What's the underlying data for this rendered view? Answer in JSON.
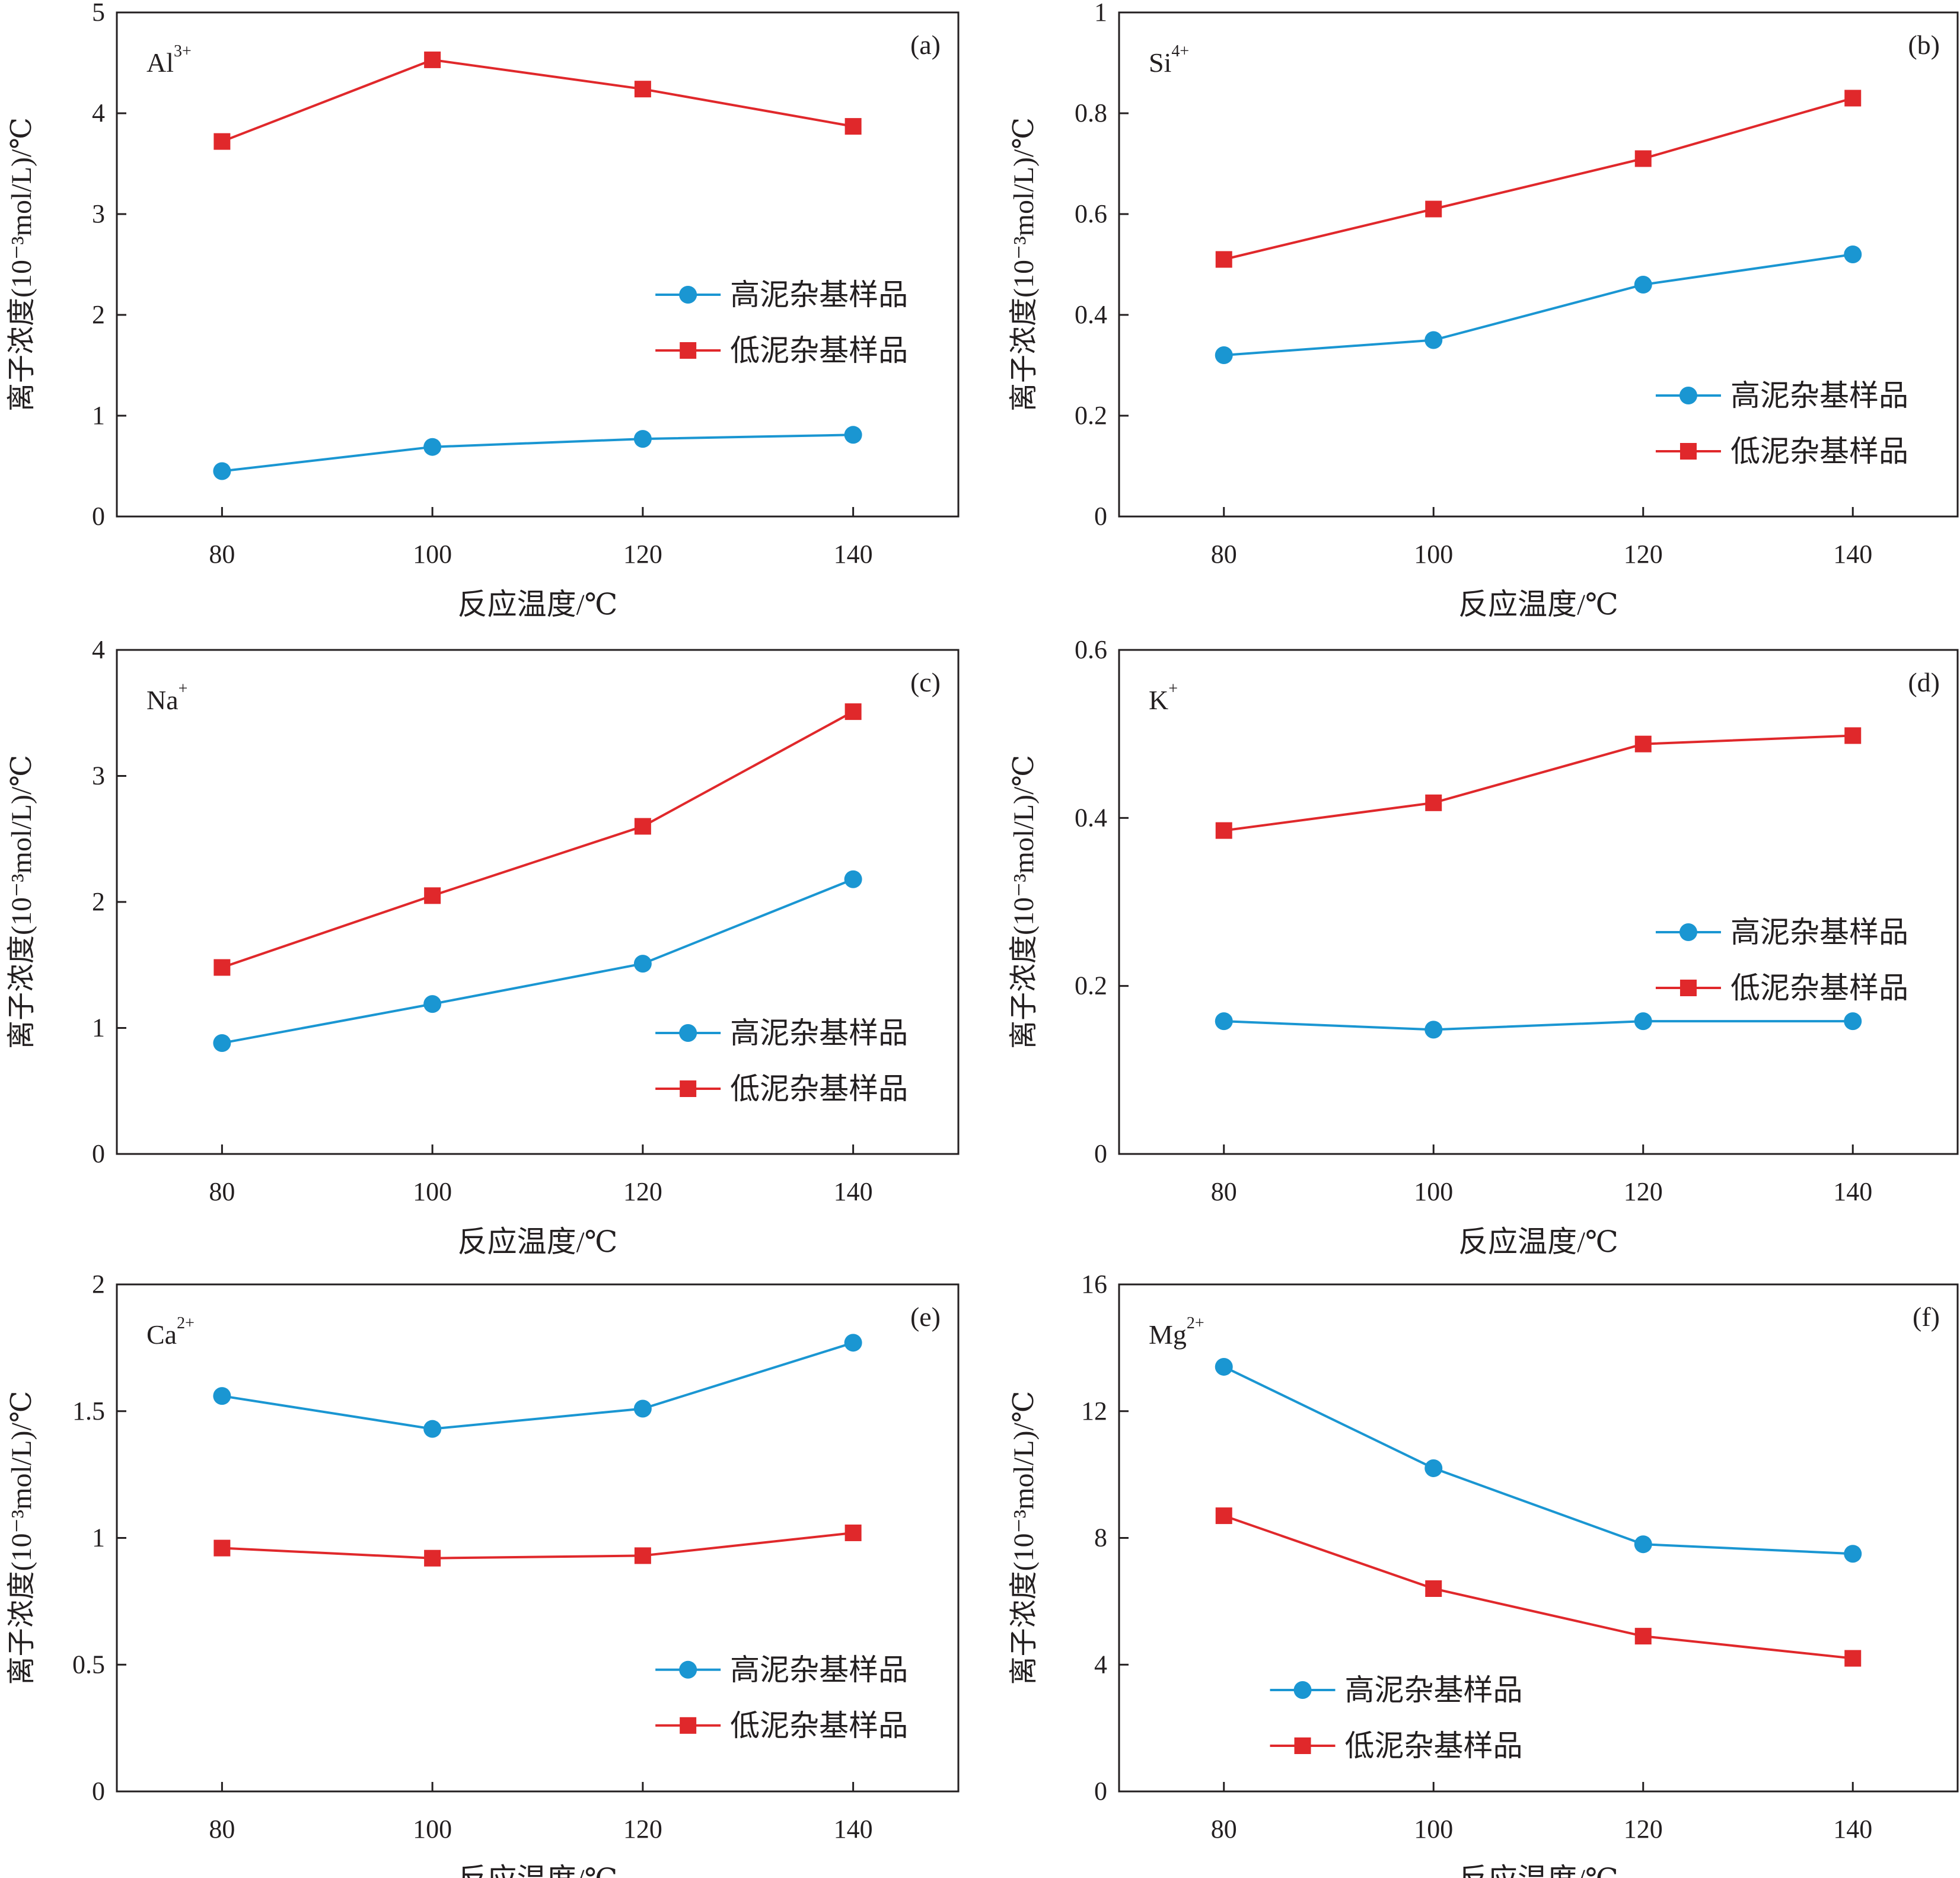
{
  "colors": {
    "high": "#1a96d2",
    "low": "#e0282b",
    "axis": "#231f20"
  },
  "legend": {
    "high_label": "高泥杂基样品",
    "low_label": "低泥杂基样品"
  },
  "xlabel": "反应温度/℃",
  "chart_data": [
    {
      "type": "line",
      "panel": "(a)",
      "ion": "Al",
      "charge": "3+",
      "ylabel": "离子浓度(10⁻³mol/L)/℃",
      "xlabel": "反应温度/℃",
      "x": [
        80,
        100,
        120,
        140
      ],
      "xlim": [
        70,
        150
      ],
      "ylim": [
        0,
        5
      ],
      "yticks": [
        "0",
        "1",
        "2",
        "3",
        "4",
        "5"
      ],
      "xticks": [
        "80",
        "100",
        "120",
        "140"
      ],
      "legend_position": "right-middle",
      "series": [
        {
          "name": "高泥杂基样品",
          "marker": "circle",
          "color": "#1a96d2",
          "values": [
            0.45,
            0.69,
            0.77,
            0.81
          ]
        },
        {
          "name": "低泥杂基样品",
          "marker": "square",
          "color": "#e0282b",
          "values": [
            3.72,
            4.53,
            4.24,
            3.87
          ]
        }
      ]
    },
    {
      "type": "line",
      "panel": "(b)",
      "ion": "Si",
      "charge": "4+",
      "ylabel": "离子浓度(10⁻³mol/L)/℃",
      "xlabel": "反应温度/℃",
      "x": [
        80,
        100,
        120,
        140
      ],
      "xlim": [
        70,
        150
      ],
      "ylim": [
        0,
        1
      ],
      "yticks": [
        "0",
        "0.2",
        "0.4",
        "0.6",
        "0.8",
        "1"
      ],
      "xticks": [
        "80",
        "100",
        "120",
        "140"
      ],
      "legend_position": "bottom-right",
      "series": [
        {
          "name": "高泥杂基样品",
          "marker": "circle",
          "color": "#1a96d2",
          "values": [
            0.32,
            0.35,
            0.46,
            0.52
          ]
        },
        {
          "name": "低泥杂基样品",
          "marker": "square",
          "color": "#e0282b",
          "values": [
            0.51,
            0.61,
            0.71,
            0.83
          ]
        }
      ]
    },
    {
      "type": "line",
      "panel": "(c)",
      "ion": "Na",
      "charge": "+",
      "ylabel": "离子浓度(10⁻³mol/L)/℃",
      "xlabel": "反应温度/℃",
      "x": [
        80,
        100,
        120,
        140
      ],
      "xlim": [
        70,
        150
      ],
      "ylim": [
        0,
        4
      ],
      "yticks": [
        "0",
        "1",
        "2",
        "3",
        "4"
      ],
      "xticks": [
        "80",
        "100",
        "120",
        "140"
      ],
      "legend_position": "bottom-right",
      "series": [
        {
          "name": "高泥杂基样品",
          "marker": "circle",
          "color": "#1a96d2",
          "values": [
            0.88,
            1.19,
            1.51,
            2.18
          ]
        },
        {
          "name": "低泥杂基样品",
          "marker": "square",
          "color": "#e0282b",
          "values": [
            1.48,
            2.05,
            2.6,
            3.51
          ]
        }
      ]
    },
    {
      "type": "line",
      "panel": "(d)",
      "ion": "K",
      "charge": "+",
      "ylabel": "离子浓度(10⁻³mol/L)/℃",
      "xlabel": "反应温度/℃",
      "x": [
        80,
        100,
        120,
        140
      ],
      "xlim": [
        70,
        150
      ],
      "ylim": [
        0,
        0.6
      ],
      "yticks": [
        "0",
        "0.2",
        "0.4",
        "0.6"
      ],
      "xticks": [
        "80",
        "100",
        "120",
        "140"
      ],
      "legend_position": "right-middle",
      "series": [
        {
          "name": "高泥杂基样品",
          "marker": "circle",
          "color": "#1a96d2",
          "values": [
            0.158,
            0.148,
            0.158,
            0.158
          ]
        },
        {
          "name": "低泥杂基样品",
          "marker": "square",
          "color": "#e0282b",
          "values": [
            0.385,
            0.418,
            0.488,
            0.498
          ]
        }
      ]
    },
    {
      "type": "line",
      "panel": "(e)",
      "ion": "Ca",
      "charge": "2+",
      "ylabel": "离子浓度(10⁻³mol/L)/℃",
      "xlabel": "反应温度/℃",
      "x": [
        80,
        100,
        120,
        140
      ],
      "xlim": [
        70,
        150
      ],
      "ylim": [
        0,
        2
      ],
      "yticks": [
        "0",
        "0.5",
        "1",
        "1.5",
        "2"
      ],
      "xticks": [
        "80",
        "100",
        "120",
        "140"
      ],
      "legend_position": "bottom-right",
      "series": [
        {
          "name": "高泥杂基样品",
          "marker": "circle",
          "color": "#1a96d2",
          "values": [
            1.56,
            1.43,
            1.51,
            1.77
          ]
        },
        {
          "name": "低泥杂基样品",
          "marker": "square",
          "color": "#e0282b",
          "values": [
            0.96,
            0.92,
            0.93,
            1.02
          ]
        }
      ]
    },
    {
      "type": "line",
      "panel": "(f)",
      "ion": "Mg",
      "charge": "2+",
      "ylabel": "离子浓度(10⁻³mol/L)/℃",
      "xlabel": "反应温度/℃",
      "x": [
        80,
        100,
        120,
        140
      ],
      "xlim": [
        70,
        150
      ],
      "ylim": [
        0,
        16
      ],
      "yticks": [
        "0",
        "4",
        "8",
        "12",
        "16"
      ],
      "xticks": [
        "80",
        "100",
        "120",
        "140"
      ],
      "legend_position": "bottom-left",
      "series": [
        {
          "name": "高泥杂基样品",
          "marker": "circle",
          "color": "#1a96d2",
          "values": [
            13.4,
            10.2,
            7.8,
            7.5
          ]
        },
        {
          "name": "低泥杂基样品",
          "marker": "square",
          "color": "#e0282b",
          "values": [
            8.7,
            6.4,
            4.9,
            4.2
          ]
        }
      ]
    }
  ]
}
